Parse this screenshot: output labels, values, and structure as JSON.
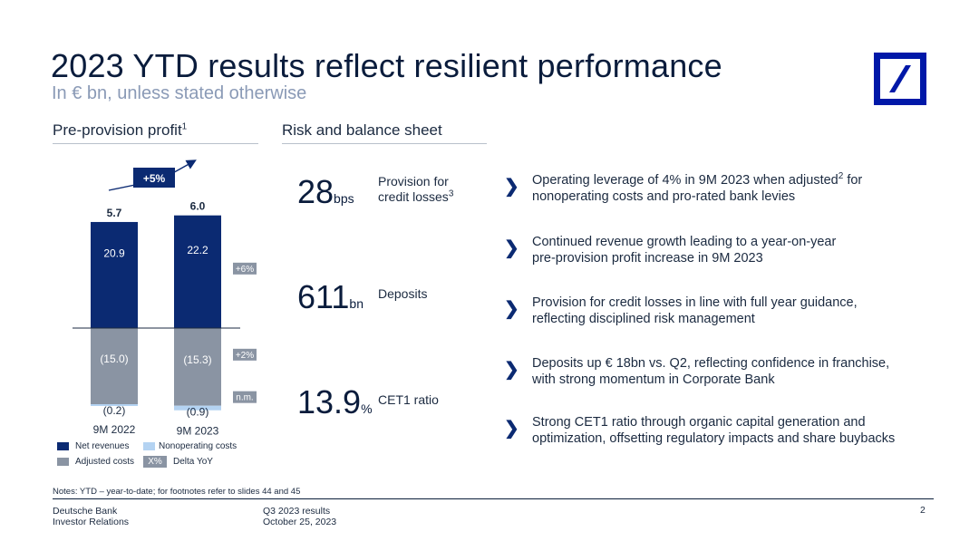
{
  "header": {
    "title": "2023 YTD results reflect resilient performance",
    "subtitle": "In € bn, unless stated otherwise",
    "logo_icon": "deutsche-bank-slash-logo"
  },
  "left_section": {
    "heading": "Pre-provision profit",
    "heading_sup": "1"
  },
  "chart_data": {
    "type": "bar",
    "categories": [
      "9M 2022",
      "9M 2023"
    ],
    "series": [
      {
        "name": "Net revenues",
        "values": [
          20.9,
          22.2
        ],
        "labels": [
          "20.9",
          "22.2"
        ],
        "delta": "+6%"
      },
      {
        "name": "Adjusted costs",
        "values": [
          -15.0,
          -15.3
        ],
        "labels": [
          "(15.0)",
          "(15.3)"
        ],
        "delta": "+2%"
      },
      {
        "name": "Nonoperating costs",
        "values": [
          -0.2,
          -0.9
        ],
        "labels": [
          "(0.2)",
          "(0.9)"
        ],
        "delta": "n.m."
      }
    ],
    "totals": [
      "5.7",
      "6.0"
    ],
    "growth_label": "+5%",
    "legend": [
      {
        "name": "Net revenues",
        "color": "#0b2a72"
      },
      {
        "name": "Nonoperating costs",
        "color": "#b4d3f2"
      },
      {
        "name": "Adjusted costs",
        "color": "#8a94a3"
      },
      {
        "name": "Delta YoY",
        "swatch_text": "X%",
        "color": "#8a94a3"
      }
    ],
    "colors": {
      "revenue": "#0b2a72",
      "costs": "#8a94a3",
      "nonop": "#b4d3f2",
      "delta_badge": "#8a94a3"
    }
  },
  "right_section": {
    "heading": "Risk and balance sheet",
    "metrics": [
      {
        "value": "28",
        "unit": "bps",
        "label": "Provision for credit losses",
        "label_sup": "3"
      },
      {
        "value": "611",
        "unit": "bn",
        "label": "Deposits",
        "label_sup": ""
      },
      {
        "value": "13.9",
        "unit": "%",
        "label": "CET1 ratio",
        "label_sup": ""
      }
    ]
  },
  "bullets": {
    "chevron": "❯",
    "items": [
      {
        "line1_a": "Operating leverage of 4% in 9M 2023 when adjusted",
        "line1_sup": "2",
        "line1_b": " for",
        "line2": "nonoperating costs and pro-rated bank levies"
      },
      {
        "line1_a": "Continued revenue growth leading to a year-on-year",
        "line1_sup": "",
        "line1_b": "",
        "line2": "pre-provision profit increase in 9M 2023"
      },
      {
        "line1_a": "Provision for credit losses in line with full year guidance,",
        "line1_sup": "",
        "line1_b": "",
        "line2": "reflecting disciplined risk management"
      },
      {
        "line1_a": "Deposits up € 18bn vs. Q2, reflecting confidence in franchise,",
        "line1_sup": "",
        "line1_b": "",
        "line2": "with strong momentum in Corporate Bank"
      },
      {
        "line1_a": "Strong CET1 ratio through organic capital generation and",
        "line1_sup": "",
        "line1_b": "",
        "line2": "optimization, offsetting regulatory impacts and share buybacks"
      }
    ]
  },
  "notes": "Notes: YTD – year-to-date; for footnotes refer to slides 44 and 45",
  "footer": {
    "company": "Deutsche Bank",
    "department": "Investor Relations",
    "report": "Q3 2023 results",
    "date": "October 25, 2023",
    "page": "2"
  }
}
